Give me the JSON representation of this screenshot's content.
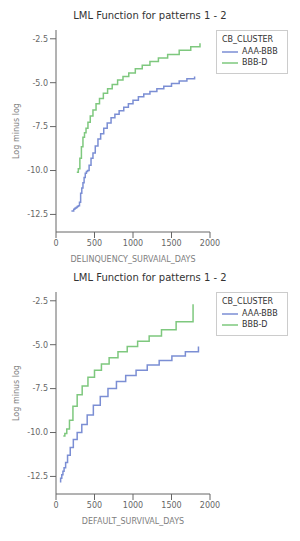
{
  "chart_data": [
    {
      "type": "step",
      "title": "LML Function for patterns 1 - 2",
      "xlabel": "DELINQUENCY_SURVAIAL_DAYS",
      "ylabel": "Log minus log",
      "legend_title": "CB_CLUSTER",
      "legend": "right",
      "grid": false,
      "xlim": [
        0,
        2000
      ],
      "xticks": [
        0,
        500,
        1000,
        1500,
        2000
      ],
      "ylim": [
        -13.5,
        -2.0
      ],
      "yticks": [
        -12.5,
        {
          "value": -10.0,
          "label": "-10.0"
        },
        -7.5,
        {
          "value": -5.0,
          "label": "-5.0"
        },
        -2.5
      ],
      "series": [
        {
          "name": "AAA-BBB",
          "color": "#7b8ed4",
          "x": [
            200,
            215,
            230,
            245,
            260,
            275,
            290,
            305,
            320,
            335,
            350,
            365,
            380,
            395,
            410,
            430,
            455,
            480,
            510,
            545,
            580,
            620,
            665,
            715,
            765,
            820,
            880,
            940,
            1000,
            1070,
            1140,
            1220,
            1310,
            1400,
            1500,
            1600,
            1700,
            1800
          ],
          "values": [
            -12.3,
            -12.3,
            -12.2,
            -12.15,
            -12.1,
            -12.05,
            -12.0,
            -11.8,
            -11.3,
            -11.0,
            -10.7,
            -10.4,
            -10.15,
            -10.05,
            -10.0,
            -9.7,
            -9.3,
            -9.0,
            -8.6,
            -8.2,
            -7.9,
            -7.6,
            -7.3,
            -7.0,
            -6.8,
            -6.6,
            -6.4,
            -6.2,
            -6.0,
            -5.8,
            -5.65,
            -5.5,
            -5.35,
            -5.2,
            -5.05,
            -4.9,
            -4.78,
            -4.65
          ]
        },
        {
          "name": "BBB-D",
          "color": "#7ec87e",
          "x": [
            270,
            290,
            310,
            330,
            350,
            370,
            390,
            415,
            445,
            480,
            520,
            565,
            615,
            670,
            730,
            800,
            870,
            945,
            1030,
            1120,
            1220,
            1330,
            1450,
            1600,
            1750,
            1870
          ],
          "values": [
            -10.1,
            -9.9,
            -9.3,
            -8.65,
            -8.1,
            -7.85,
            -7.6,
            -7.25,
            -6.9,
            -6.55,
            -6.2,
            -5.9,
            -5.6,
            -5.35,
            -5.1,
            -4.85,
            -4.65,
            -4.45,
            -4.2,
            -4.0,
            -3.8,
            -3.6,
            -3.4,
            -3.15,
            -2.95,
            -2.75
          ]
        }
      ]
    },
    {
      "type": "step",
      "title": "LML Function for patterns 1 - 2",
      "xlabel": "DEFAULT_SURVIVAL_DAYS",
      "ylabel": "Log minus log",
      "legend_title": "CB_CLUSTER",
      "legend": "right",
      "grid": false,
      "xlim": [
        0,
        2000
      ],
      "xticks": [
        0,
        500,
        1000,
        1500,
        2000
      ],
      "ylim": [
        -13.5,
        -2.0
      ],
      "yticks": [
        -12.5,
        {
          "value": -10.0,
          "label": "-10.0"
        },
        -7.5,
        {
          "value": -5.0,
          "label": "-5.0"
        },
        -2.5
      ],
      "series": [
        {
          "name": "AAA-BBB",
          "color": "#7b8ed4",
          "x": [
            50,
            60,
            75,
            90,
            105,
            125,
            150,
            185,
            225,
            275,
            335,
            405,
            485,
            575,
            675,
            785,
            905,
            1040,
            1185,
            1340,
            1505,
            1680,
            1850
          ],
          "values": [
            -12.8,
            -12.6,
            -12.4,
            -12.2,
            -12.0,
            -11.7,
            -11.3,
            -10.85,
            -10.4,
            -10.0,
            -9.55,
            -9.0,
            -8.45,
            -7.95,
            -7.5,
            -7.1,
            -6.75,
            -6.45,
            -6.15,
            -5.9,
            -5.65,
            -5.4,
            -5.1
          ]
        },
        {
          "name": "BBB-D",
          "color": "#7ec87e",
          "x": [
            95,
            115,
            140,
            175,
            220,
            275,
            340,
            415,
            500,
            590,
            690,
            805,
            925,
            1060,
            1210,
            1370,
            1560,
            1780
          ],
          "values": [
            -10.2,
            -10.05,
            -9.8,
            -9.3,
            -8.5,
            -7.85,
            -7.35,
            -6.85,
            -6.45,
            -6.1,
            -5.75,
            -5.4,
            -5.1,
            -4.8,
            -4.5,
            -4.15,
            -3.7,
            -2.7
          ]
        }
      ]
    }
  ]
}
